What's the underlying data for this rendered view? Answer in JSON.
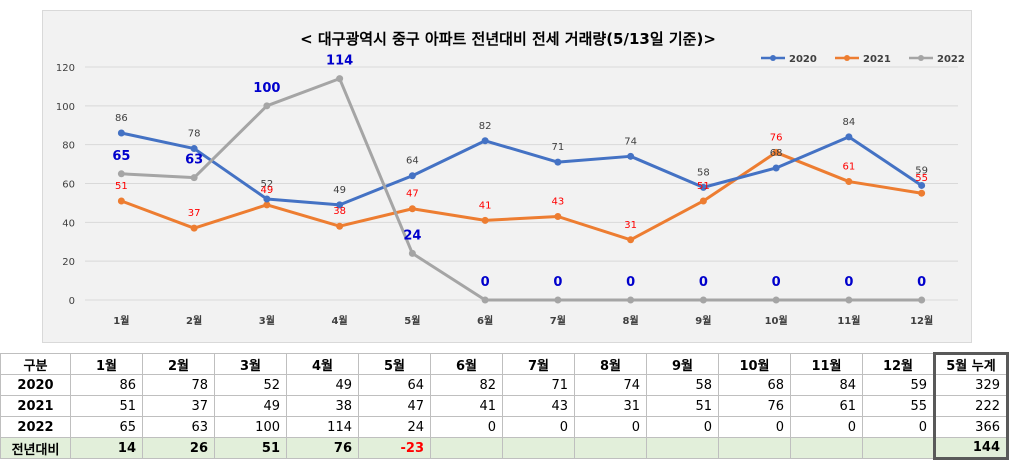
{
  "chart_data": {
    "type": "line",
    "title": "< 대구광역시 중구 아파트 전년대비 전세 거래량(5/13일 기준)>",
    "categories": [
      "1월",
      "2월",
      "3월",
      "4월",
      "5월",
      "6월",
      "7월",
      "8월",
      "9월",
      "10월",
      "11월",
      "12월"
    ],
    "ylim": [
      0,
      120
    ],
    "yticks": [
      0,
      20,
      40,
      60,
      80,
      100,
      120
    ],
    "grid": true,
    "legend_position": "top-right",
    "series": [
      {
        "name": "2020",
        "color": "#4472c4",
        "values": [
          86,
          78,
          52,
          49,
          64,
          82,
          71,
          74,
          58,
          68,
          84,
          59
        ],
        "label_color": "#404040",
        "label_bold": false
      },
      {
        "name": "2021",
        "color": "#ed7d31",
        "values": [
          51,
          37,
          49,
          38,
          47,
          41,
          43,
          31,
          51,
          76,
          61,
          55
        ],
        "label_color": "#ff0000",
        "label_bold": false
      },
      {
        "name": "2022",
        "color": "#a5a5a5",
        "values": [
          65,
          63,
          100,
          114,
          24,
          0,
          0,
          0,
          0,
          0,
          0,
          0
        ],
        "label_color": "#0000cc",
        "label_bold": true
      }
    ]
  },
  "table": {
    "header": [
      "구분",
      "1월",
      "2월",
      "3월",
      "4월",
      "5월",
      "6월",
      "7월",
      "8월",
      "9월",
      "10월",
      "11월",
      "12월",
      "5월 누계"
    ],
    "rows": [
      {
        "label": "2020",
        "cells": [
          "86",
          "78",
          "52",
          "49",
          "64",
          "82",
          "71",
          "74",
          "58",
          "68",
          "84",
          "59"
        ],
        "total": "329"
      },
      {
        "label": "2021",
        "cells": [
          "51",
          "37",
          "49",
          "38",
          "47",
          "41",
          "43",
          "31",
          "51",
          "76",
          "61",
          "55"
        ],
        "total": "222"
      },
      {
        "label": "2022",
        "cells": [
          "65",
          "63",
          "100",
          "114",
          "24",
          "0",
          "0",
          "0",
          "0",
          "0",
          "0",
          "0"
        ],
        "total": "366"
      }
    ],
    "diff_row": {
      "label": "전년대비",
      "cells": [
        "14",
        "26",
        "51",
        "76",
        "-23",
        "",
        "",
        "",
        "",
        "",
        "",
        ""
      ],
      "total": "144"
    }
  }
}
